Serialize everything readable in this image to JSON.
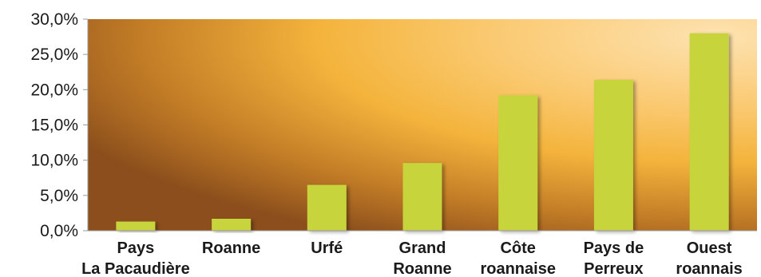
{
  "chart_data": {
    "type": "bar",
    "title": "",
    "xlabel": "",
    "ylabel": "",
    "categories": [
      [
        "Pays",
        "La Pacaudière"
      ],
      [
        "Roanne"
      ],
      [
        "Urfé"
      ],
      [
        "Grand",
        "Roanne"
      ],
      [
        "Côte",
        "roannaise"
      ],
      [
        "Pays de",
        "Perreux"
      ],
      [
        "Ouest",
        "roannais"
      ]
    ],
    "values": [
      1.3,
      1.7,
      6.5,
      9.6,
      19.2,
      21.4,
      28.0
    ],
    "ylim": [
      0,
      30
    ],
    "yticks": [
      0,
      5,
      10,
      15,
      20,
      25,
      30
    ],
    "ytick_labels": [
      "0,0%",
      "5,0%",
      "10,0%",
      "15,0%",
      "20,0%",
      "25,0%",
      "30,0%"
    ],
    "grid": false,
    "legend": "none",
    "colors": {
      "bar": "#c8d43a",
      "background_light": "#fbd89a",
      "background_mid": "#f4b43c",
      "background_dark": "#8b4e1c",
      "axis": "#9a9a9a"
    }
  }
}
